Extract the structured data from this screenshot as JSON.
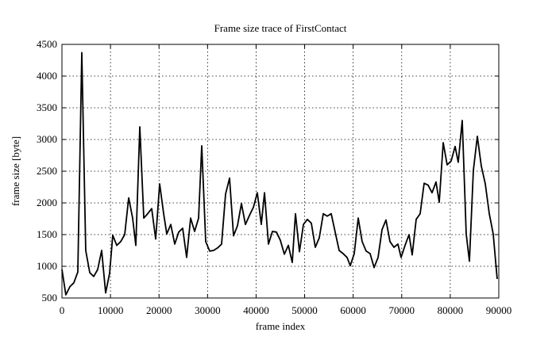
{
  "chart_data": {
    "type": "line",
    "title": "Frame size trace of FirstContact",
    "x_label": "frame index",
    "y_label": "frame size [byte]",
    "x": [
      0,
      800,
      1650,
      2450,
      3270,
      4090,
      4900,
      5730,
      6550,
      7360,
      8180,
      9000,
      9820,
      10470,
      11290,
      12110,
      12930,
      13750,
      14560,
      15220,
      16040,
      16860,
      17670,
      18490,
      19310,
      20130,
      20950,
      21600,
      22420,
      23240,
      24060,
      24870,
      25690,
      26510,
      27330,
      28150,
      28800,
      29620,
      30440,
      31250,
      32070,
      32890,
      33710,
      34530,
      35350,
      36160,
      36980,
      37800,
      38620,
      39440,
      40250,
      41070,
      41730,
      42550,
      43360,
      44180,
      45000,
      45820,
      46640,
      47450,
      48110,
      48930,
      49750,
      50560,
      51380,
      52200,
      53020,
      53840,
      54650,
      55470,
      56290,
      57110,
      57930,
      58740,
      59400,
      60220,
      61040,
      61850,
      62670,
      63490,
      64310,
      65130,
      65950,
      66760,
      67580,
      68400,
      69220,
      69870,
      70690,
      71510,
      72160,
      72980,
      73800,
      74620,
      75430,
      76250,
      77070,
      77730,
      78550,
      79360,
      80180,
      81000,
      81650,
      82470,
      83290,
      83950,
      84760,
      85580,
      86400,
      87220,
      88040,
      88850,
      89670
    ],
    "series": [
      {
        "name": "frame size",
        "color": "#000000",
        "values": [
          950,
          550,
          680,
          740,
          910,
          4370,
          1250,
          900,
          840,
          950,
          1250,
          580,
          890,
          1490,
          1330,
          1390,
          1500,
          2080,
          1760,
          1330,
          3200,
          1760,
          1830,
          1910,
          1430,
          2300,
          1830,
          1510,
          1660,
          1350,
          1540,
          1600,
          1140,
          1760,
          1550,
          1760,
          2900,
          1390,
          1240,
          1250,
          1290,
          1350,
          2140,
          2390,
          1480,
          1640,
          1990,
          1660,
          1800,
          1930,
          2160,
          1660,
          2160,
          1350,
          1550,
          1540,
          1410,
          1190,
          1330,
          1060,
          1830,
          1230,
          1660,
          1740,
          1680,
          1300,
          1450,
          1830,
          1790,
          1830,
          1540,
          1250,
          1200,
          1140,
          1010,
          1200,
          1760,
          1390,
          1240,
          1200,
          980,
          1140,
          1580,
          1730,
          1390,
          1300,
          1350,
          1140,
          1330,
          1500,
          1180,
          1740,
          1830,
          2310,
          2280,
          2160,
          2330,
          2010,
          2950,
          2600,
          2660,
          2890,
          2640,
          3300,
          1510,
          1080,
          2510,
          3050,
          2580,
          2300,
          1830,
          1510,
          800
        ]
      }
    ],
    "xlim": [
      0,
      90000
    ],
    "xticks": [
      0,
      10000,
      20000,
      30000,
      40000,
      50000,
      60000,
      70000,
      80000,
      90000
    ],
    "ylim": [
      500,
      4500
    ],
    "yticks": [
      500,
      1000,
      1500,
      2000,
      2500,
      3000,
      3500,
      4000,
      4500
    ],
    "grid": true
  }
}
